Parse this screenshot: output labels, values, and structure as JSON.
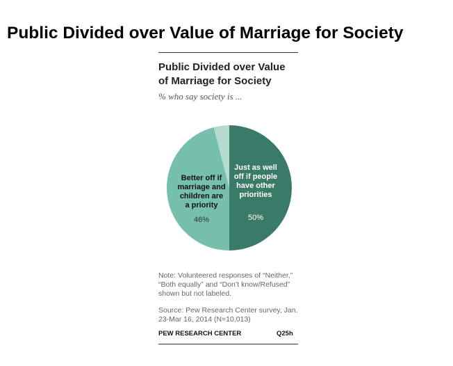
{
  "page_title": "Public Divided over Value of Marriage for Society",
  "chart_data": {
    "type": "pie",
    "title_lines": [
      "Public Divided over Value",
      "of Marriage for Society"
    ],
    "subtitle": "% who say society is ...",
    "slices": [
      {
        "label_lines": [
          "Just as well",
          "off if people",
          "have other",
          "priorities"
        ],
        "value": 50,
        "value_label": "50%",
        "color": "#3a7a69",
        "label_color": "#ffffff",
        "value_color": "#ffffff"
      },
      {
        "label_lines": [
          "Better off if",
          "marriage and",
          "children are",
          "a priority"
        ],
        "value": 46,
        "value_label": "46%",
        "color": "#76bfac",
        "label_color": "#111111",
        "value_color": "#333333"
      },
      {
        "label_lines": [],
        "value": 4,
        "value_label": "",
        "color": "#b6dcd2"
      }
    ]
  },
  "note_lines": [
    "Note: Volunteered responses of “Neither,”",
    "“Both equally” and “Don’t know/Refused”",
    "shown but not labeled."
  ],
  "source_lines": [
    "Source: Pew Research Center survey, Jan.",
    "23-Mar 16, 2014 (N=10,013)"
  ],
  "org": "PEW RESEARCH CENTER",
  "question_code": "Q25h"
}
